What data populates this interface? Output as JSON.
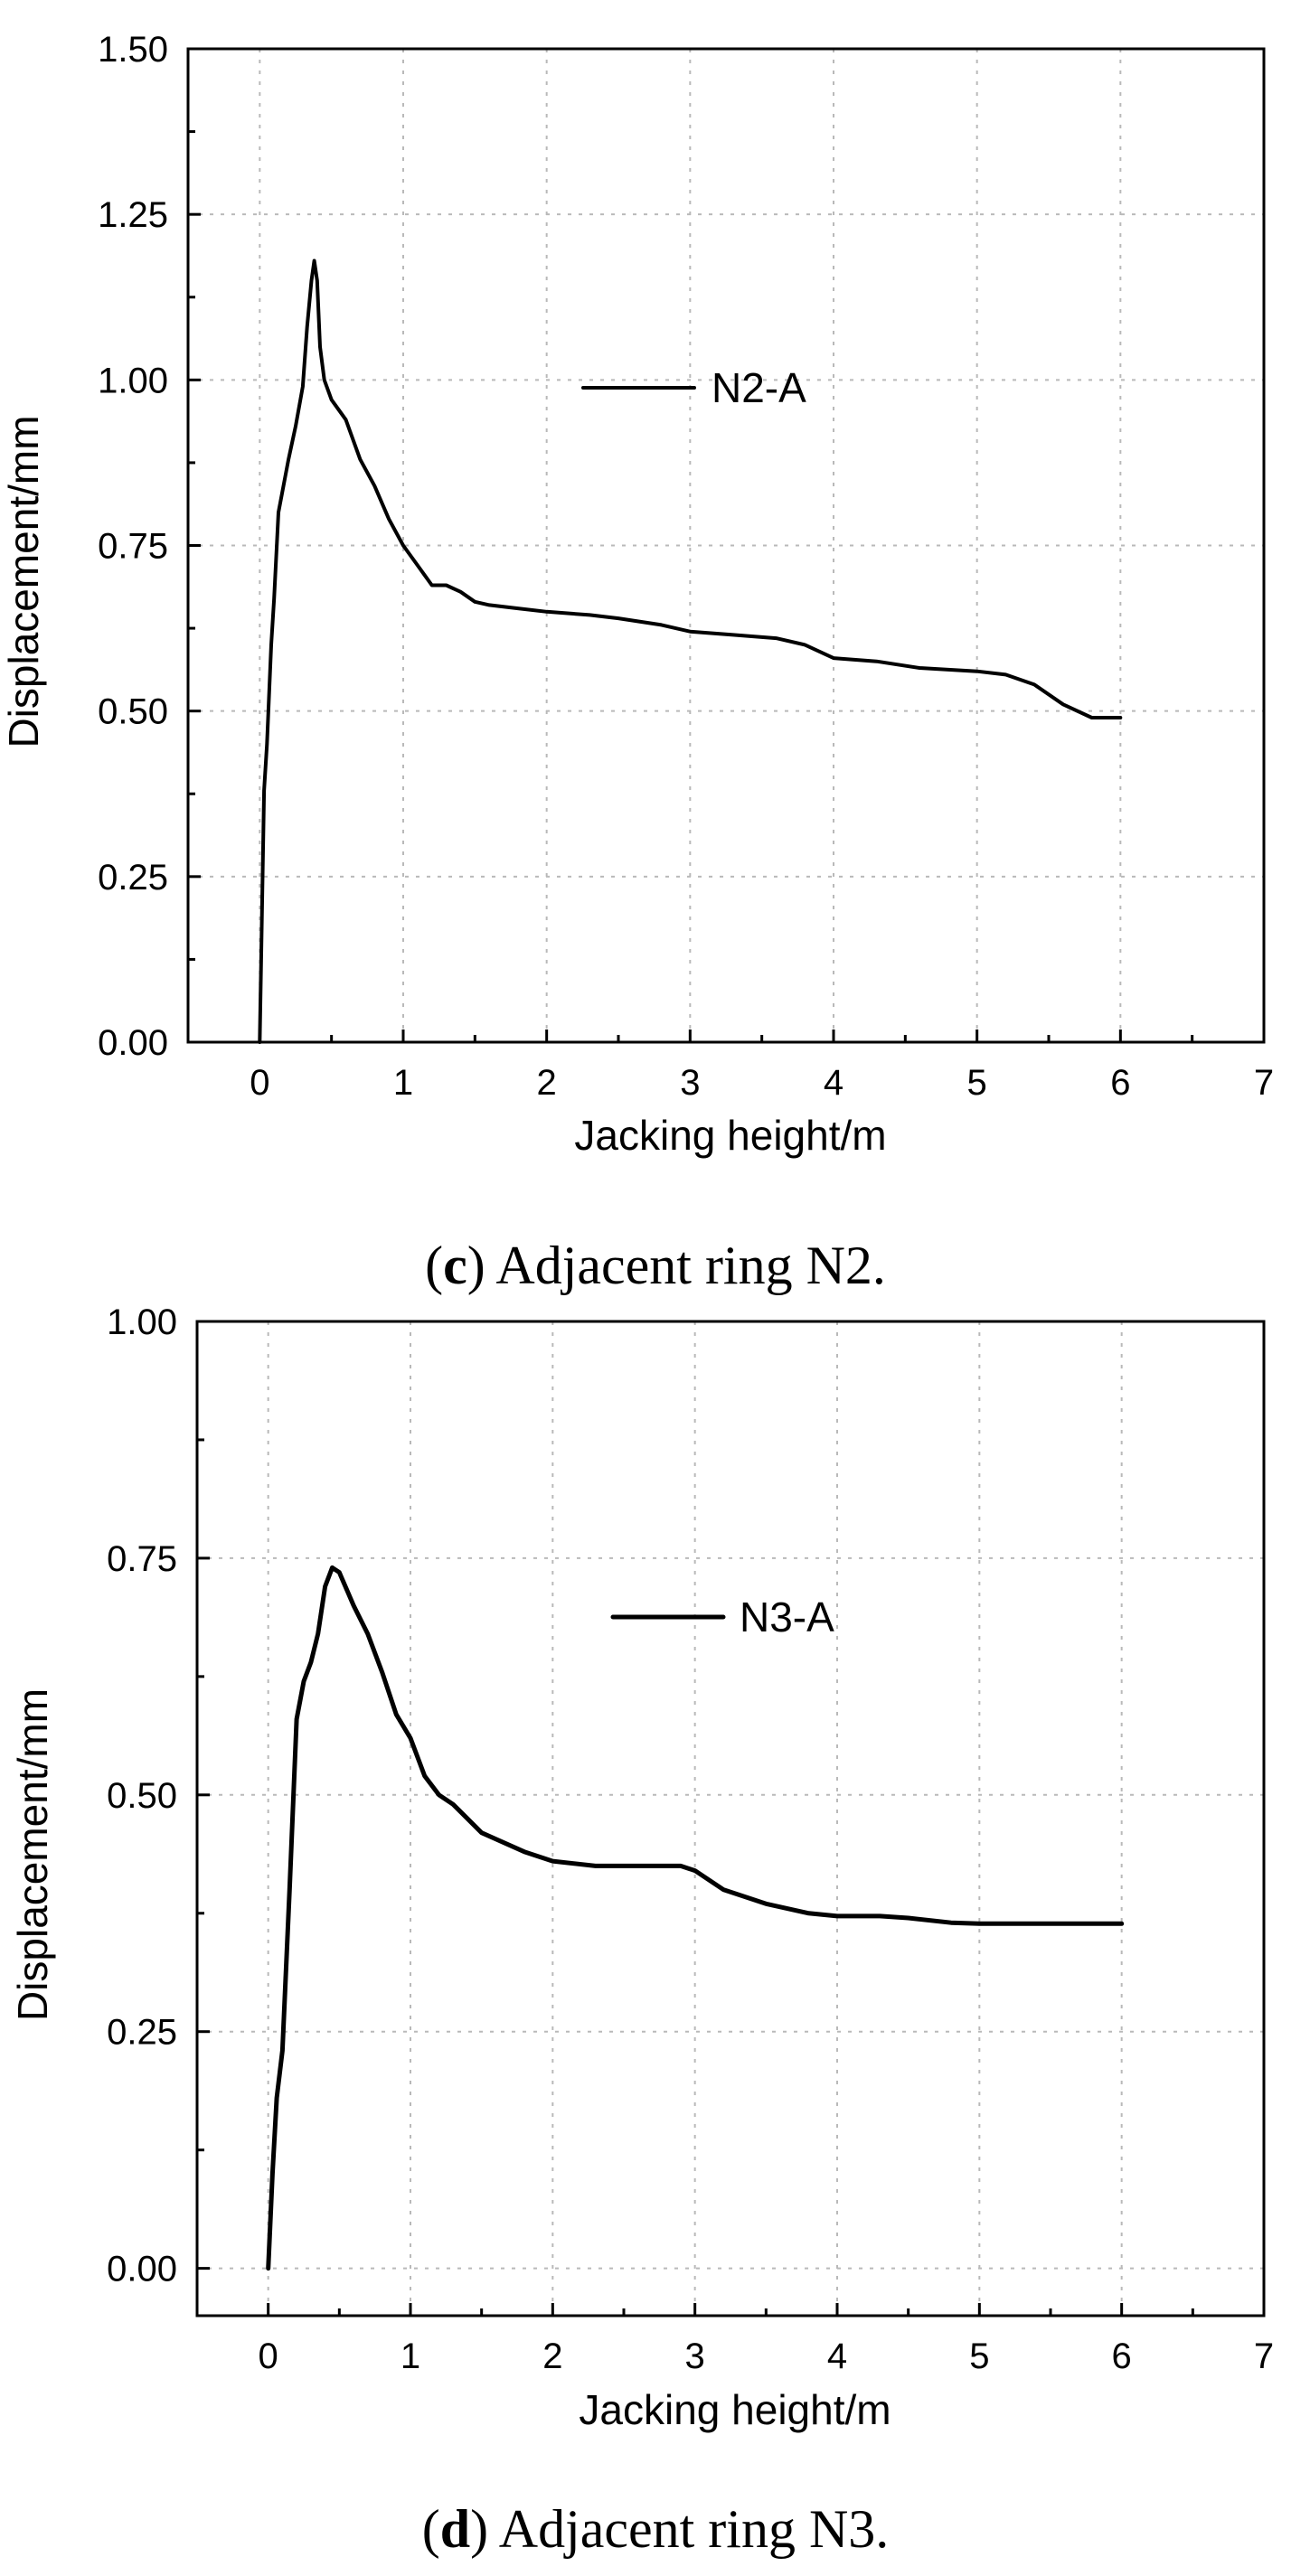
{
  "chart_data": [
    {
      "id": "c",
      "type": "line",
      "xlabel": "Jacking height/m",
      "ylabel": "Displacement/mm",
      "xlim": [
        -0.5,
        7
      ],
      "ylim": [
        0,
        1.5
      ],
      "xticks": [
        0,
        1,
        2,
        3,
        4,
        5,
        6,
        7
      ],
      "xtick_labels": [
        "0",
        "1",
        "2",
        "3",
        "4",
        "5",
        "6",
        "7"
      ],
      "yticks": [
        0,
        0.25,
        0.5,
        0.75,
        1.0,
        1.25,
        1.5
      ],
      "ytick_labels": [
        "0.00",
        "0.25",
        "0.50",
        "0.75",
        "1.00",
        "1.25",
        "1.50"
      ],
      "grid": true,
      "legend_position": "upper-middle",
      "series": [
        {
          "name": "N2-A",
          "x": [
            0,
            0.03,
            0.05,
            0.08,
            0.1,
            0.13,
            0.2,
            0.25,
            0.3,
            0.33,
            0.36,
            0.38,
            0.4,
            0.42,
            0.45,
            0.5,
            0.6,
            0.7,
            0.8,
            0.9,
            1.0,
            1.1,
            1.2,
            1.3,
            1.4,
            1.5,
            1.6,
            1.8,
            2.0,
            2.3,
            2.5,
            2.8,
            3.0,
            3.3,
            3.6,
            3.8,
            4.0,
            4.3,
            4.6,
            5.0,
            5.2,
            5.4,
            5.6,
            5.8,
            6.0
          ],
          "y": [
            0,
            0.38,
            0.45,
            0.6,
            0.67,
            0.8,
            0.88,
            0.93,
            0.99,
            1.08,
            1.15,
            1.18,
            1.15,
            1.05,
            1.0,
            0.97,
            0.94,
            0.88,
            0.84,
            0.79,
            0.75,
            0.72,
            0.69,
            0.69,
            0.68,
            0.665,
            0.66,
            0.655,
            0.65,
            0.645,
            0.64,
            0.63,
            0.62,
            0.615,
            0.61,
            0.6,
            0.58,
            0.575,
            0.565,
            0.56,
            0.555,
            0.54,
            0.51,
            0.49,
            0.49
          ]
        }
      ]
    },
    {
      "id": "d",
      "type": "line",
      "xlabel": "Jacking height/m",
      "ylabel": "Displacement/mm",
      "xlim": [
        -0.5,
        7
      ],
      "ylim": [
        -0.05,
        1.0
      ],
      "xticks": [
        0,
        1,
        2,
        3,
        4,
        5,
        6,
        7
      ],
      "xtick_labels": [
        "0",
        "1",
        "2",
        "3",
        "4",
        "5",
        "6",
        "7"
      ],
      "yticks": [
        0,
        0.25,
        0.5,
        0.75,
        1.0
      ],
      "ytick_labels": [
        "0.00",
        "0.25",
        "0.50",
        "0.75",
        "1.00"
      ],
      "grid": true,
      "legend_position": "upper-middle",
      "series": [
        {
          "name": "N3-A",
          "x": [
            0,
            0.03,
            0.06,
            0.1,
            0.15,
            0.2,
            0.25,
            0.3,
            0.35,
            0.4,
            0.45,
            0.5,
            0.6,
            0.7,
            0.8,
            0.9,
            1.0,
            1.1,
            1.2,
            1.3,
            1.5,
            1.8,
            2.0,
            2.3,
            2.6,
            2.9,
            3.0,
            3.2,
            3.5,
            3.8,
            4.0,
            4.3,
            4.5,
            4.8,
            5.0,
            5.5,
            6.0
          ],
          "y": [
            0,
            0.1,
            0.18,
            0.23,
            0.4,
            0.58,
            0.62,
            0.64,
            0.67,
            0.72,
            0.74,
            0.735,
            0.7,
            0.67,
            0.63,
            0.585,
            0.56,
            0.52,
            0.5,
            0.49,
            0.46,
            0.44,
            0.43,
            0.425,
            0.425,
            0.425,
            0.42,
            0.4,
            0.385,
            0.375,
            0.372,
            0.372,
            0.37,
            0.365,
            0.364,
            0.364,
            0.364
          ]
        }
      ]
    }
  ],
  "captions": [
    {
      "letter": "c",
      "text": " Adjacent ring N2."
    },
    {
      "letter": "d",
      "text": " Adjacent ring N3."
    }
  ]
}
